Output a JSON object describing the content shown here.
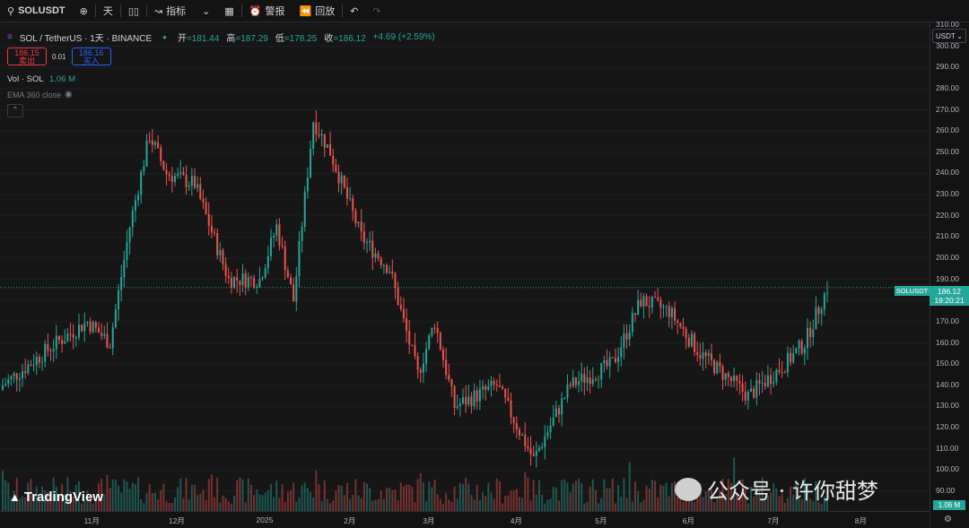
{
  "toolbar": {
    "symbol": "SOLUSDT",
    "interval": "天",
    "indicators": "指标",
    "alerts": "警报",
    "replay": "回放"
  },
  "legend": {
    "title": "SOL / TetherUS · 1天 · BINANCE",
    "open_label": "开",
    "open": "=181.44",
    "high_label": "高",
    "high": "=187.29",
    "low_label": "低",
    "low": "=178.25",
    "close_label": "收",
    "close": "=186.12",
    "change": "+4.69 (+2.59%)"
  },
  "trade": {
    "sell_price": "186.15",
    "sell_label": "卖出",
    "spread": "0.01",
    "buy_price": "186.16",
    "buy_label": "买入"
  },
  "volume_legend": {
    "label": "Vol · SOL",
    "value": "1.06 M"
  },
  "ema_legend": {
    "label": "EMA 360 close"
  },
  "currency_button": "USDT",
  "last_price": {
    "symbol": "SOLUSDT",
    "price": "186.12",
    "countdown": "19:20:21"
  },
  "volume_tag": "1.06 M",
  "brand": "TradingView",
  "watermark": "公众号 · 许你甜梦",
  "colors": {
    "up": "#26a69a",
    "down": "#ef5350",
    "background": "#161616"
  },
  "chart_data": {
    "type": "candlestick",
    "price_axis": {
      "min": 90,
      "max": 310,
      "ticks": [
        "90.00",
        "100.00",
        "110.00",
        "120.00",
        "130.00",
        "140.00",
        "150.00",
        "160.00",
        "170.00",
        "180.00",
        "190.00",
        "200.00",
        "210.00",
        "220.00",
        "230.00",
        "240.00",
        "250.00",
        "260.00",
        "270.00",
        "280.00",
        "290.00",
        "300.00",
        "310.00"
      ]
    },
    "time_axis": {
      "ticks": [
        "11月",
        "12月",
        "2025",
        "2月",
        "3月",
        "4月",
        "5月",
        "6月",
        "7月",
        "8月"
      ]
    },
    "close_path": [
      {
        "date": "2024-10-01",
        "close": 140
      },
      {
        "date": "2024-10-20",
        "close": 160
      },
      {
        "date": "2024-10-31",
        "close": 170
      },
      {
        "date": "2024-11-08",
        "close": 160
      },
      {
        "date": "2024-11-15",
        "close": 215
      },
      {
        "date": "2024-11-22",
        "close": 258
      },
      {
        "date": "2024-11-28",
        "close": 240
      },
      {
        "date": "2024-12-08",
        "close": 235
      },
      {
        "date": "2024-12-20",
        "close": 190
      },
      {
        "date": "2024-12-31",
        "close": 190
      },
      {
        "date": "2025-01-06",
        "close": 215
      },
      {
        "date": "2025-01-12",
        "close": 180
      },
      {
        "date": "2025-01-19",
        "close": 265
      },
      {
        "date": "2025-01-25",
        "close": 250
      },
      {
        "date": "2025-02-05",
        "close": 210
      },
      {
        "date": "2025-02-15",
        "close": 195
      },
      {
        "date": "2025-02-25",
        "close": 145
      },
      {
        "date": "2025-03-03",
        "close": 170
      },
      {
        "date": "2025-03-10",
        "close": 130
      },
      {
        "date": "2025-03-25",
        "close": 140
      },
      {
        "date": "2025-04-07",
        "close": 105
      },
      {
        "date": "2025-04-20",
        "close": 140
      },
      {
        "date": "2025-05-05",
        "close": 150
      },
      {
        "date": "2025-05-15",
        "close": 180
      },
      {
        "date": "2025-05-25",
        "close": 175
      },
      {
        "date": "2025-06-05",
        "close": 155
      },
      {
        "date": "2025-06-22",
        "close": 135
      },
      {
        "date": "2025-07-05",
        "close": 150
      },
      {
        "date": "2025-07-12",
        "close": 160
      },
      {
        "date": "2025-07-20",
        "close": 186
      }
    ]
  }
}
